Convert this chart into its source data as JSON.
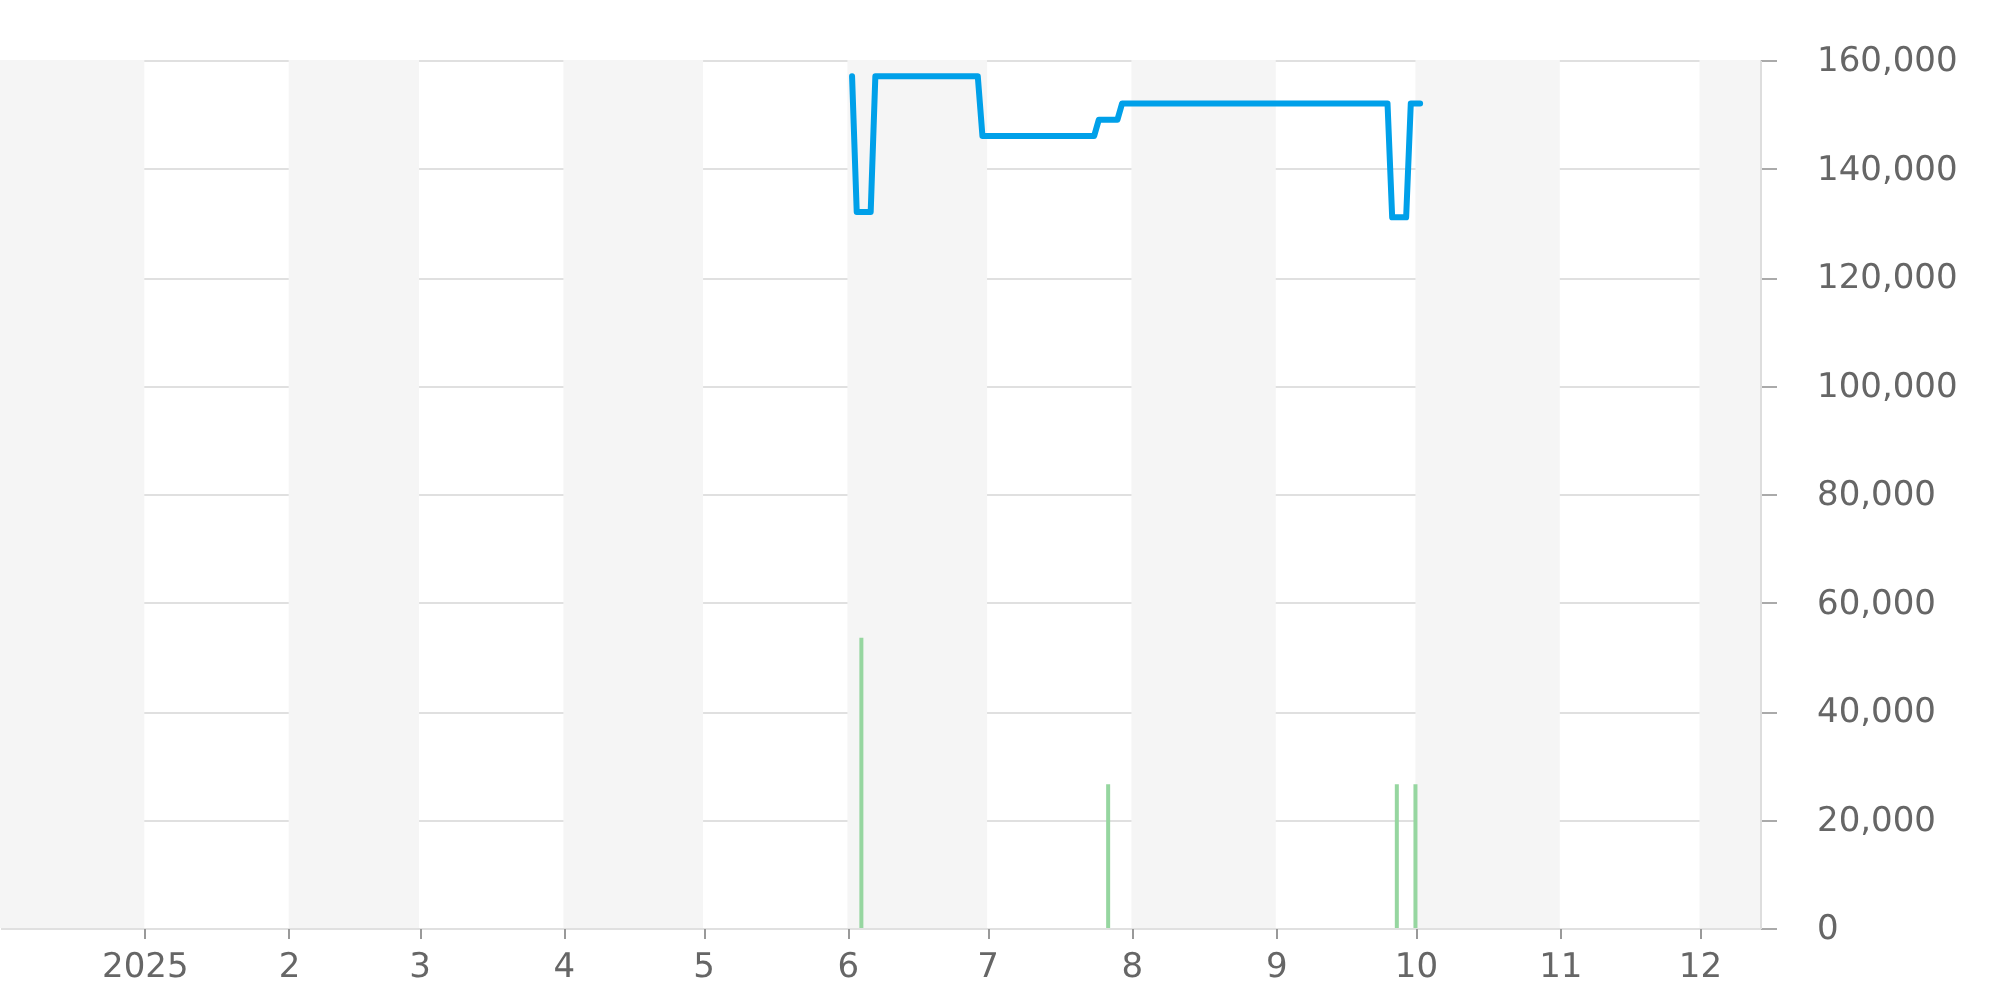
{
  "chart_data": {
    "type": "line",
    "xlim": [
      "2024-12-01",
      "2025-12-14"
    ],
    "xticks": [
      {
        "value": "2025-01-01",
        "label": "2025"
      },
      {
        "value": "2025-02-01",
        "label": "2"
      },
      {
        "value": "2025-03-01",
        "label": "3"
      },
      {
        "value": "2025-04-01",
        "label": "4"
      },
      {
        "value": "2025-05-01",
        "label": "5"
      },
      {
        "value": "2025-06-01",
        "label": "6"
      },
      {
        "value": "2025-07-01",
        "label": "7"
      },
      {
        "value": "2025-08-01",
        "label": "8"
      },
      {
        "value": "2025-09-01",
        "label": "9"
      },
      {
        "value": "2025-10-01",
        "label": "10"
      },
      {
        "value": "2025-11-01",
        "label": "11"
      },
      {
        "value": "2025-12-01",
        "label": "12"
      }
    ],
    "ylim": [
      0,
      160000
    ],
    "yticks": [
      0,
      {
        "value": 20000,
        "label": "20,000"
      },
      {
        "value": 40000,
        "label": "40,000"
      },
      {
        "value": 60000,
        "label": "60,000"
      },
      {
        "value": 80000,
        "label": "80,000"
      },
      {
        "value": 100000,
        "label": "100,000"
      },
      {
        "value": 120000,
        "label": "120,000"
      },
      {
        "value": 140000,
        "label": "140,000"
      },
      {
        "value": 160000,
        "label": "160,000"
      }
    ],
    "grid": "y",
    "bands": [
      {
        "axis": "x",
        "from": "2024-12-01",
        "to": "2025-01-01",
        "color": "#f5f5f5"
      },
      {
        "axis": "x",
        "from": "2025-02-01",
        "to": "2025-03-01",
        "color": "#f5f5f5"
      },
      {
        "axis": "x",
        "from": "2025-04-01",
        "to": "2025-05-01",
        "color": "#f5f5f5"
      },
      {
        "axis": "x",
        "from": "2025-06-01",
        "to": "2025-07-01",
        "color": "#f5f5f5"
      },
      {
        "axis": "x",
        "from": "2025-08-01",
        "to": "2025-09-01",
        "color": "#f5f5f5"
      },
      {
        "axis": "x",
        "from": "2025-10-01",
        "to": "2025-11-01",
        "color": "#f5f5f5"
      },
      {
        "axis": "x",
        "from": "2025-12-01",
        "to": "2025-12-14",
        "color": "#f5f5f5"
      }
    ],
    "series": [
      {
        "type": "bar",
        "color": "#96d6a0",
        "x": [
          "2025-06-04",
          "2025-07-27",
          "2025-09-27",
          "2025-10-01"
        ],
        "values": [
          53500,
          26500,
          26500,
          26500
        ]
      },
      {
        "type": "line",
        "color": "#00a0e9",
        "x": [
          "2025-06-02",
          "2025-06-03",
          "2025-06-06",
          "2025-06-07",
          "2025-06-29",
          "2025-06-30",
          "2025-07-24",
          "2025-07-25",
          "2025-07-29",
          "2025-07-30",
          "2025-09-25",
          "2025-09-26",
          "2025-09-29",
          "2025-09-30",
          "2025-10-02"
        ],
        "values": [
          157000,
          132000,
          132000,
          157000,
          157000,
          146000,
          146000,
          149000,
          149000,
          152000,
          152000,
          131000,
          131000,
          152000,
          152000
        ]
      }
    ]
  }
}
